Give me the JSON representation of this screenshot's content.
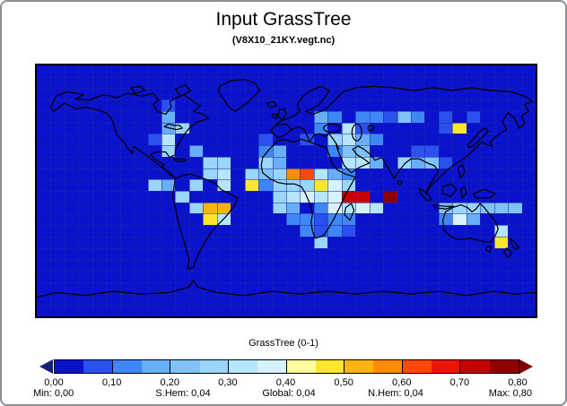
{
  "title": "Input GrassTree",
  "subtitle": "(V8X10_21KY.vegt.nc)",
  "colorbar": {
    "label": "GrassTree (0-1)",
    "tick_labels": [
      "0,00",
      "0,10",
      "0,20",
      "0,30",
      "0,40",
      "0,50",
      "0,60",
      "0,70",
      "0,80"
    ],
    "palette": [
      "#0A12CC",
      "#2B50F0",
      "#3F87F7",
      "#68AEF9",
      "#80C3FA",
      "#9AD5FB",
      "#B6E6FC",
      "#D5F2FD",
      "#FFFF9E",
      "#FFE62E",
      "#FFB30F",
      "#FF8C05",
      "#FF4708",
      "#EE1405",
      "#C40000",
      "#8F0000"
    ],
    "underflow_arrow_color": "#14207E",
    "overflow_arrow_color": "#7D0000",
    "stats": {
      "min": "Min: 0,00",
      "shem": "S.Hem: 0,04",
      "global": "Global: 0,04",
      "nhem": "N.Hem: 0,04",
      "max": "Max: 0,80"
    }
  },
  "chart_data": {
    "type": "heatmap",
    "title": "Input GrassTree",
    "subtitle": "(V8X10_21KY.vegt.nc)",
    "colorbar_label": "GrassTree (0-1)",
    "scale_ticks": [
      0.0,
      0.1,
      0.2,
      0.3,
      0.4,
      0.5,
      0.6,
      0.7,
      0.8
    ],
    "value_bin_width": 0.05,
    "bins_note": "bin i (1-16) covers value range [(i-1)*0.05, i*0.05]; background ocean/land with value ~0 uses bin 1",
    "stats": {
      "min": 0.0,
      "s_hem": 0.04,
      "global": 0.04,
      "n_hem": 0.04,
      "max": 0.8
    },
    "grid": {
      "cols": 36,
      "rows": 22,
      "cell_deg_lon": 10,
      "cell_deg_lat": 8
    },
    "background_color": "#0A12CC",
    "cells": [
      [
        9,
        3,
        2
      ],
      [
        9,
        4,
        4
      ],
      [
        9,
        5,
        4
      ],
      [
        10,
        5,
        6
      ],
      [
        8,
        6,
        2
      ],
      [
        9,
        6,
        7
      ],
      [
        9,
        7,
        6
      ],
      [
        11,
        7,
        4
      ],
      [
        12,
        8,
        6
      ],
      [
        13,
        8,
        6
      ],
      [
        12,
        9,
        6
      ],
      [
        13,
        9,
        7
      ],
      [
        8,
        10,
        6
      ],
      [
        9,
        10,
        4
      ],
      [
        11,
        10,
        6
      ],
      [
        13,
        10,
        7
      ],
      [
        10,
        11,
        6
      ],
      [
        11,
        12,
        6
      ],
      [
        12,
        12,
        11
      ],
      [
        13,
        12,
        11
      ],
      [
        12,
        13,
        10
      ],
      [
        13,
        13,
        7
      ],
      [
        21,
        4,
        3
      ],
      [
        23,
        4,
        3
      ],
      [
        20,
        5,
        3
      ],
      [
        22,
        5,
        7
      ],
      [
        23,
        5,
        2
      ],
      [
        16,
        6,
        2
      ],
      [
        19,
        6,
        2
      ],
      [
        22,
        6,
        7
      ],
      [
        23,
        6,
        4
      ],
      [
        24,
        6,
        3
      ],
      [
        16,
        7,
        3
      ],
      [
        17,
        7,
        4
      ],
      [
        16,
        8,
        6
      ],
      [
        17,
        8,
        4
      ],
      [
        22,
        8,
        7
      ],
      [
        23,
        8,
        7
      ],
      [
        24,
        8,
        4
      ],
      [
        15,
        9,
        6
      ],
      [
        16,
        9,
        5
      ],
      [
        17,
        9,
        6
      ],
      [
        18,
        9,
        12
      ],
      [
        19,
        9,
        13
      ],
      [
        20,
        9,
        7
      ],
      [
        21,
        9,
        4
      ],
      [
        22,
        9,
        3
      ],
      [
        15,
        10,
        10
      ],
      [
        16,
        10,
        3
      ],
      [
        17,
        10,
        6
      ],
      [
        18,
        10,
        6
      ],
      [
        19,
        10,
        6
      ],
      [
        20,
        10,
        10
      ],
      [
        21,
        10,
        8
      ],
      [
        22,
        10,
        6
      ],
      [
        17,
        11,
        6
      ],
      [
        18,
        11,
        7
      ],
      [
        19,
        11,
        8
      ],
      [
        20,
        11,
        7
      ],
      [
        21,
        11,
        8
      ],
      [
        22,
        11,
        15
      ],
      [
        23,
        11,
        15
      ],
      [
        25,
        11,
        16
      ],
      [
        17,
        12,
        6
      ],
      [
        18,
        12,
        4
      ],
      [
        20,
        12,
        3
      ],
      [
        21,
        12,
        8
      ],
      [
        22,
        12,
        7
      ],
      [
        23,
        12,
        8
      ],
      [
        24,
        12,
        7
      ],
      [
        18,
        13,
        3
      ],
      [
        19,
        13,
        3
      ],
      [
        20,
        13,
        2
      ],
      [
        21,
        13,
        3
      ],
      [
        22,
        13,
        3
      ],
      [
        19,
        14,
        3
      ],
      [
        20,
        14,
        2
      ],
      [
        21,
        14,
        3
      ],
      [
        22,
        14,
        2
      ],
      [
        20,
        15,
        6
      ],
      [
        20,
        4,
        4
      ],
      [
        24,
        4,
        3
      ],
      [
        25,
        4,
        2
      ],
      [
        26,
        4,
        5
      ],
      [
        27,
        4,
        3
      ],
      [
        29,
        4,
        2
      ],
      [
        31,
        4,
        2
      ],
      [
        29,
        5,
        2
      ],
      [
        30,
        5,
        10
      ],
      [
        21,
        6,
        6
      ],
      [
        21,
        7,
        3
      ],
      [
        22,
        7,
        5
      ],
      [
        23,
        7,
        5
      ],
      [
        27,
        7,
        2
      ],
      [
        28,
        7,
        2
      ],
      [
        26,
        8,
        6
      ],
      [
        27,
        8,
        4
      ],
      [
        28,
        8,
        5
      ],
      [
        29,
        8,
        2
      ],
      [
        29,
        12,
        5
      ],
      [
        30,
        12,
        6
      ],
      [
        31,
        12,
        6
      ],
      [
        32,
        12,
        5
      ],
      [
        33,
        12,
        5
      ],
      [
        34,
        12,
        5
      ],
      [
        29,
        13,
        3
      ],
      [
        30,
        13,
        8
      ],
      [
        31,
        13,
        4
      ],
      [
        33,
        14,
        7
      ],
      [
        33,
        15,
        10
      ]
    ]
  }
}
